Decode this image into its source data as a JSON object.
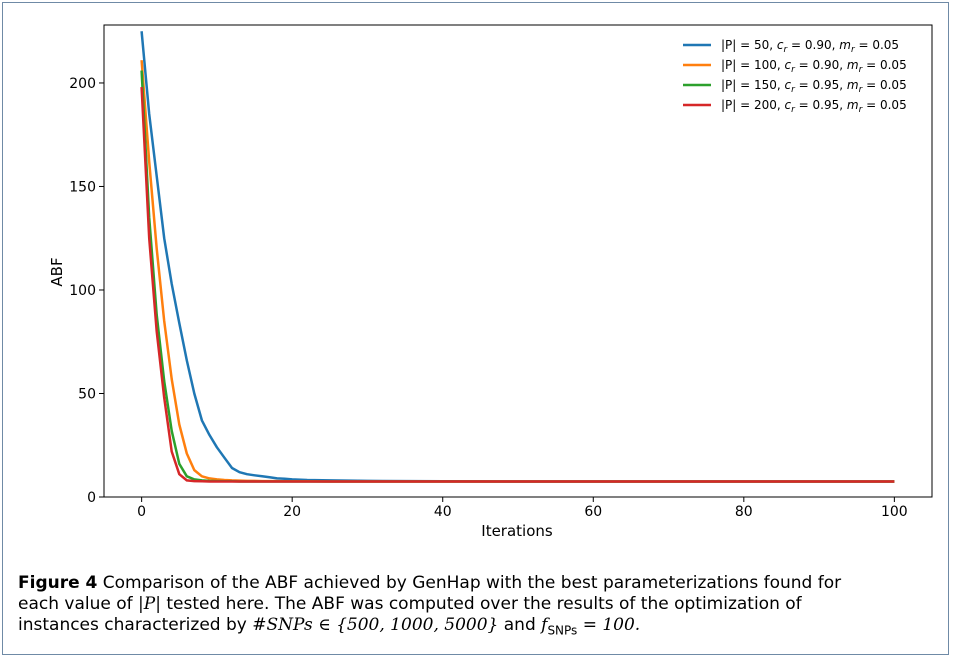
{
  "chart_data": {
    "type": "line",
    "title": "",
    "xlabel": "Iterations",
    "ylabel": "ABF",
    "xlim": [
      -5,
      105
    ],
    "ylim": [
      0,
      228
    ],
    "xticks": [
      0,
      20,
      40,
      60,
      80,
      100
    ],
    "yticks": [
      0,
      50,
      100,
      150,
      200
    ],
    "grid": false,
    "legend_position": "top-right",
    "x": [
      0,
      1,
      2,
      3,
      4,
      5,
      6,
      7,
      8,
      9,
      10,
      11,
      12,
      13,
      14,
      15,
      16,
      17,
      18,
      19,
      20,
      22,
      25,
      30,
      40,
      50,
      60,
      70,
      80,
      90,
      100
    ],
    "series": [
      {
        "name": "|P| = 50, c_r = 0.90, m_r = 0.05",
        "legend_parts": {
          "pre": "|P| = 50, ",
          "c": "c",
          "c_sub": "r",
          "c_val": " = 0.90, ",
          "m": "m",
          "m_sub": "r",
          "m_val": " = 0.05"
        },
        "color": "#1f77b4",
        "values": [
          225,
          185,
          155,
          125,
          103,
          84,
          66,
          50,
          37,
          30,
          24,
          19,
          14,
          12,
          11,
          10.5,
          10,
          9.5,
          9,
          8.8,
          8.5,
          8.2,
          8,
          7.8,
          7.6,
          7.5,
          7.5,
          7.5,
          7.5,
          7.5,
          7.5
        ]
      },
      {
        "name": "|P| = 100, c_r = 0.90, m_r = 0.05",
        "legend_parts": {
          "pre": "|P| = 100, ",
          "c": "c",
          "c_sub": "r",
          "c_val": " = 0.90, ",
          "m": "m",
          "m_sub": "r",
          "m_val": " = 0.05"
        },
        "color": "#ff7f0e",
        "values": [
          211,
          162,
          120,
          85,
          57,
          35,
          21,
          13,
          10,
          9,
          8.5,
          8.2,
          8,
          7.9,
          7.8,
          7.8,
          7.7,
          7.7,
          7.7,
          7.6,
          7.6,
          7.6,
          7.5,
          7.5,
          7.5,
          7.5,
          7.5,
          7.5,
          7.5,
          7.5,
          7.5
        ]
      },
      {
        "name": "|P| = 150, c_r = 0.95, m_r = 0.05",
        "legend_parts": {
          "pre": "|P| = 150, ",
          "c": "c",
          "c_sub": "r",
          "c_val": " = 0.95, ",
          "m": "m",
          "m_sub": "r",
          "m_val": " = 0.05"
        },
        "color": "#2ca02c",
        "values": [
          206,
          135,
          88,
          56,
          32,
          16,
          10,
          8.5,
          8,
          7.8,
          7.7,
          7.6,
          7.6,
          7.5,
          7.5,
          7.5,
          7.5,
          7.5,
          7.5,
          7.5,
          7.5,
          7.5,
          7.5,
          7.5,
          7.5,
          7.5,
          7.5,
          7.5,
          7.5,
          7.5,
          7.5
        ]
      },
      {
        "name": "|P| = 200, c_r = 0.95, m_r = 0.05",
        "legend_parts": {
          "pre": "|P| = 200, ",
          "c": "c",
          "c_sub": "r",
          "c_val": " = 0.95, ",
          "m": "m",
          "m_sub": "r",
          "m_val": " = 0.05"
        },
        "color": "#d62728",
        "values": [
          198,
          125,
          80,
          48,
          22,
          11,
          8,
          7.7,
          7.6,
          7.5,
          7.5,
          7.5,
          7.5,
          7.5,
          7.5,
          7.5,
          7.5,
          7.5,
          7.5,
          7.5,
          7.5,
          7.5,
          7.5,
          7.5,
          7.5,
          7.5,
          7.5,
          7.5,
          7.5,
          7.5,
          7.5
        ]
      }
    ]
  },
  "caption": {
    "figure_label": "Figure 4",
    "line1": " Comparison of the ABF achieved by GenHap with the best parameterizations found for",
    "line2_pre": "each value of ",
    "line2_math": "|P|",
    "line2_post": " tested here. The ABF was computed over the results of the optimization of",
    "line3_pre": "instances characterized by ",
    "line3_math1": "#SNPs ∈ {500, 1000, 5000}",
    "line3_mid": " and ",
    "line3_math2_f": "f",
    "line3_math2_sub": "SNPs",
    "line3_math2_val": " = 100."
  }
}
